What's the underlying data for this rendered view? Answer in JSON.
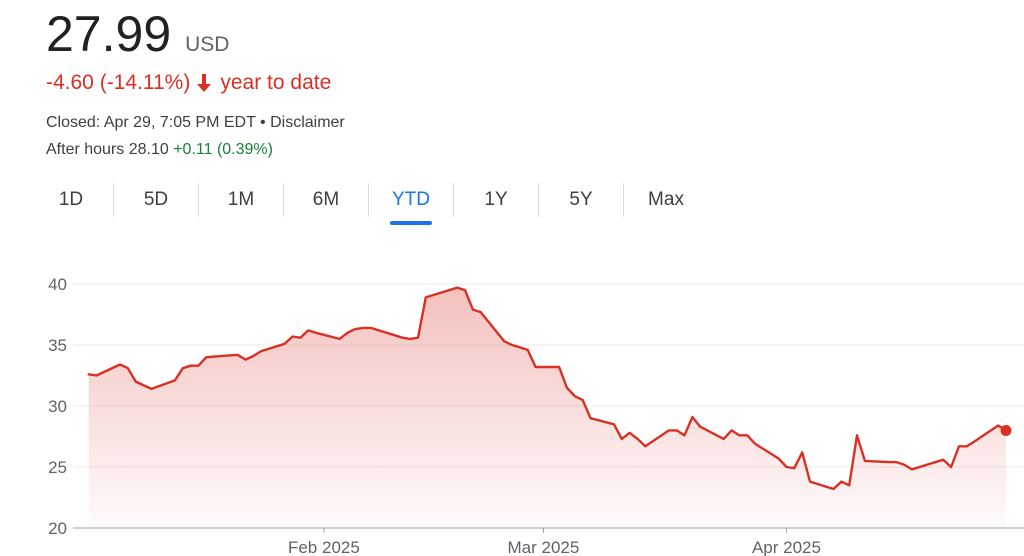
{
  "quote": {
    "price": "27.99",
    "currency": "USD",
    "change_text": "-4.60 (-14.11%)",
    "period_text": "year to date",
    "closed_text": "Closed: Apr 29, 7:05 PM EDT • Disclaimer",
    "after_hours_label": "After hours 28.10",
    "after_hours_change": "+0.11 (0.39%)"
  },
  "tabs": [
    {
      "label": "1D"
    },
    {
      "label": "5D"
    },
    {
      "label": "1M"
    },
    {
      "label": "6M"
    },
    {
      "label": "YTD",
      "active": true
    },
    {
      "label": "1Y"
    },
    {
      "label": "5Y"
    },
    {
      "label": "Max"
    }
  ],
  "colors": {
    "negative": "#d93025",
    "positive": "#188038",
    "accent": "#1a73e8",
    "line": "#d93025"
  },
  "chart_data": {
    "type": "area",
    "xlim": [
      "2024-12-31",
      "2025-04-29"
    ],
    "ylim": [
      20,
      40
    ],
    "y_ticks": [
      20,
      25,
      30,
      35,
      40
    ],
    "x_ticks": [
      {
        "date": "2025-02-01",
        "label": "Feb 2025"
      },
      {
        "date": "2025-03-01",
        "label": "Mar 2025"
      },
      {
        "date": "2025-04-01",
        "label": "Apr 2025"
      }
    ],
    "grid": true,
    "series": [
      {
        "points": [
          [
            "2025-01-02",
            32.6
          ],
          [
            "2025-01-03",
            32.5
          ],
          [
            "2025-01-06",
            33.4
          ],
          [
            "2025-01-07",
            33.1
          ],
          [
            "2025-01-08",
            32.0
          ],
          [
            "2025-01-10",
            31.4
          ],
          [
            "2025-01-13",
            32.1
          ],
          [
            "2025-01-14",
            33.1
          ],
          [
            "2025-01-15",
            33.3
          ],
          [
            "2025-01-16",
            33.3
          ],
          [
            "2025-01-17",
            34.0
          ],
          [
            "2025-01-21",
            34.2
          ],
          [
            "2025-01-22",
            33.8
          ],
          [
            "2025-01-23",
            34.1
          ],
          [
            "2025-01-24",
            34.5
          ],
          [
            "2025-01-27",
            35.1
          ],
          [
            "2025-01-28",
            35.7
          ],
          [
            "2025-01-29",
            35.6
          ],
          [
            "2025-01-30",
            36.2
          ],
          [
            "2025-01-31",
            36.0
          ],
          [
            "2025-02-03",
            35.5
          ],
          [
            "2025-02-04",
            36.0
          ],
          [
            "2025-02-05",
            36.3
          ],
          [
            "2025-02-06",
            36.4
          ],
          [
            "2025-02-07",
            36.4
          ],
          [
            "2025-02-10",
            35.8
          ],
          [
            "2025-02-11",
            35.6
          ],
          [
            "2025-02-12",
            35.5
          ],
          [
            "2025-02-13",
            35.6
          ],
          [
            "2025-02-14",
            38.9
          ],
          [
            "2025-02-18",
            39.7
          ],
          [
            "2025-02-19",
            39.5
          ],
          [
            "2025-02-20",
            37.9
          ],
          [
            "2025-02-21",
            37.7
          ],
          [
            "2025-02-24",
            35.3
          ],
          [
            "2025-02-25",
            35.0
          ],
          [
            "2025-02-26",
            34.8
          ],
          [
            "2025-02-27",
            34.6
          ],
          [
            "2025-02-28",
            33.2
          ],
          [
            "2025-03-03",
            33.2
          ],
          [
            "2025-03-04",
            31.5
          ],
          [
            "2025-03-05",
            30.8
          ],
          [
            "2025-03-06",
            30.5
          ],
          [
            "2025-03-07",
            29.0
          ],
          [
            "2025-03-10",
            28.5
          ],
          [
            "2025-03-11",
            27.3
          ],
          [
            "2025-03-12",
            27.8
          ],
          [
            "2025-03-13",
            27.3
          ],
          [
            "2025-03-14",
            26.7
          ],
          [
            "2025-03-17",
            28.0
          ],
          [
            "2025-03-18",
            28.0
          ],
          [
            "2025-03-19",
            27.6
          ],
          [
            "2025-03-20",
            29.1
          ],
          [
            "2025-03-21",
            28.3
          ],
          [
            "2025-03-24",
            27.3
          ],
          [
            "2025-03-25",
            28.0
          ],
          [
            "2025-03-26",
            27.6
          ],
          [
            "2025-03-27",
            27.6
          ],
          [
            "2025-03-28",
            26.9
          ],
          [
            "2025-03-31",
            25.7
          ],
          [
            "2025-04-01",
            25.0
          ],
          [
            "2025-04-02",
            24.9
          ],
          [
            "2025-04-03",
            26.2
          ],
          [
            "2025-04-04",
            23.8
          ],
          [
            "2025-04-07",
            23.2
          ],
          [
            "2025-04-08",
            23.8
          ],
          [
            "2025-04-09",
            23.5
          ],
          [
            "2025-04-10",
            27.6
          ],
          [
            "2025-04-11",
            25.5
          ],
          [
            "2025-04-14",
            25.4
          ],
          [
            "2025-04-15",
            25.4
          ],
          [
            "2025-04-16",
            25.2
          ],
          [
            "2025-04-17",
            24.8
          ],
          [
            "2025-04-21",
            25.6
          ],
          [
            "2025-04-22",
            25.0
          ],
          [
            "2025-04-23",
            26.7
          ],
          [
            "2025-04-24",
            26.7
          ],
          [
            "2025-04-25",
            27.1
          ],
          [
            "2025-04-28",
            28.4
          ],
          [
            "2025-04-29",
            27.99
          ]
        ]
      }
    ]
  }
}
